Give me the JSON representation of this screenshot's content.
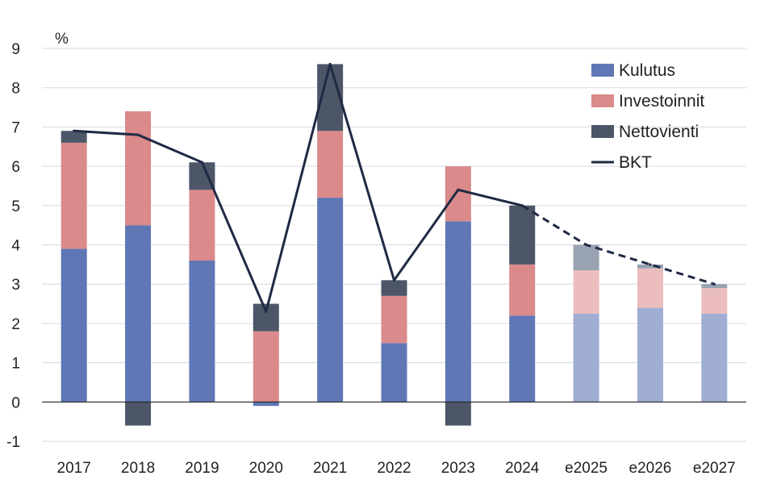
{
  "chart_data": {
    "type": "bar",
    "stacked": true,
    "ylabel": "%",
    "ylim": [
      -1,
      9
    ],
    "yticks": [
      -1,
      0,
      1,
      2,
      3,
      4,
      5,
      6,
      7,
      8,
      9
    ],
    "categories": [
      "2017",
      "2018",
      "2019",
      "2020",
      "2021",
      "2022",
      "2023",
      "2024",
      "e2025",
      "e2026",
      "e2027"
    ],
    "forecast_from_index": 8,
    "series": [
      {
        "name": "Kulutus",
        "kind": "bar",
        "color": "#6077b5",
        "light_color": "#a0aed4",
        "values": [
          3.9,
          4.5,
          3.6,
          -0.1,
          5.2,
          1.5,
          4.6,
          2.2,
          2.25,
          2.4,
          2.25
        ]
      },
      {
        "name": "Investoinnit",
        "kind": "bar",
        "color": "#da8a8a",
        "light_color": "#ebbdbd",
        "values": [
          2.7,
          2.9,
          1.8,
          1.8,
          1.7,
          1.2,
          1.4,
          1.3,
          1.1,
          1.0,
          0.65
        ]
      },
      {
        "name": "Nettovienti",
        "kind": "bar",
        "color": "#4d5667",
        "light_color": "#98a2b0",
        "values": [
          0.3,
          -0.6,
          0.7,
          0.7,
          1.7,
          0.4,
          -0.6,
          1.5,
          0.65,
          0.1,
          0.1
        ]
      },
      {
        "name": "BKT",
        "kind": "line",
        "color": "#1f2a44",
        "values": [
          6.9,
          6.8,
          6.1,
          2.3,
          8.6,
          3.1,
          5.4,
          5.0,
          4.0,
          3.5,
          3.0
        ]
      }
    ],
    "legend": [
      "Kulutus",
      "Investoinnit",
      "Nettovienti",
      "BKT"
    ],
    "legend_position": "top-right",
    "grid": true
  }
}
